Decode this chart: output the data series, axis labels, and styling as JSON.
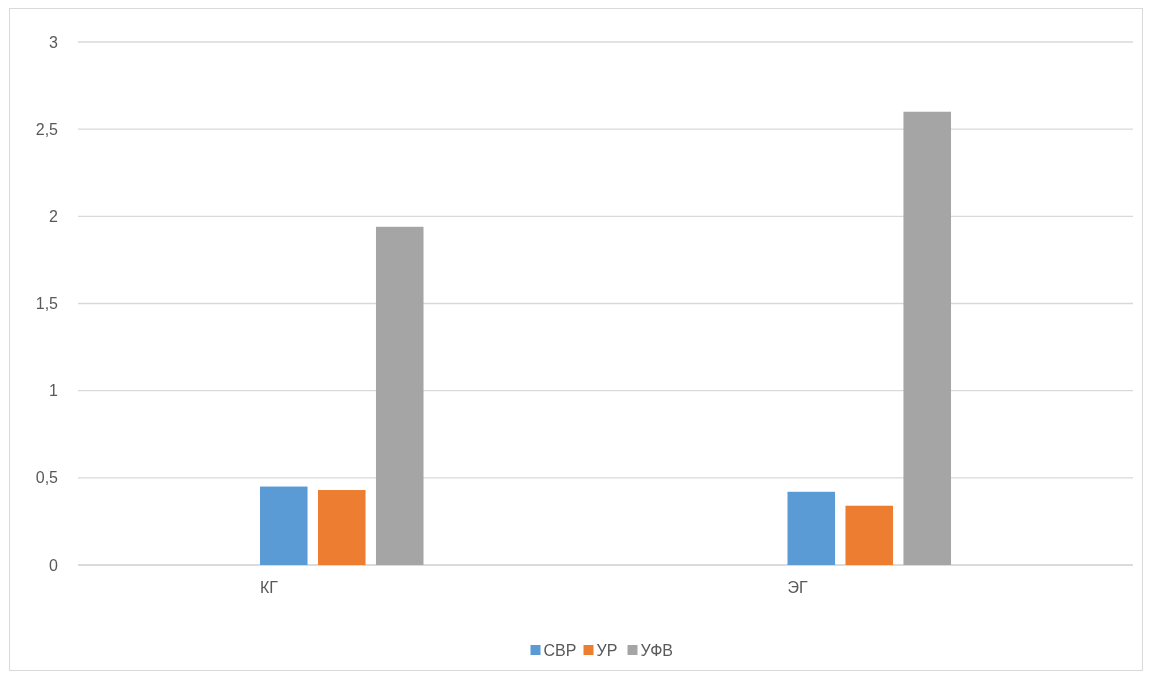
{
  "chart_data": {
    "type": "bar",
    "categories": [
      "КГ",
      "ЭГ"
    ],
    "series": [
      {
        "name": "СВР",
        "color": "#5b9bd5",
        "values": [
          0.45,
          0.42
        ]
      },
      {
        "name": "УР",
        "color": "#ed7d31",
        "values": [
          0.43,
          0.34
        ]
      },
      {
        "name": "УФВ",
        "color": "#a5a5a5",
        "values": [
          1.94,
          2.6
        ]
      }
    ],
    "ylim": [
      0,
      3
    ],
    "yticks": [
      0,
      {
        "value": 0.5,
        "label": "0,5"
      },
      1,
      {
        "value": 1.5,
        "label": "1,5"
      },
      2,
      {
        "value": 2.5,
        "label": "2,5"
      },
      3
    ],
    "grid": "y",
    "legend": "bottom"
  }
}
